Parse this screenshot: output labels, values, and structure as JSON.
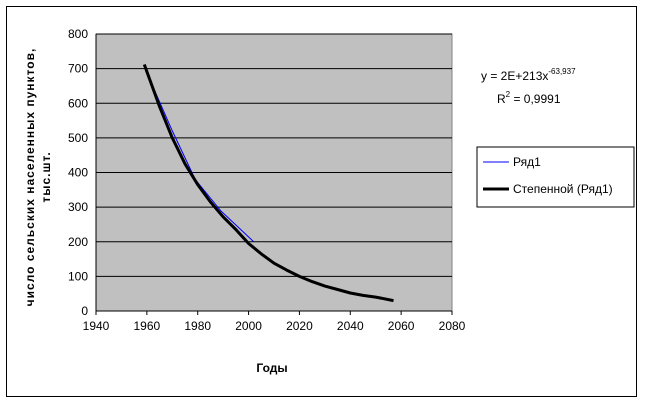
{
  "chart_data": {
    "type": "line",
    "xlabel": "Годы",
    "ylabel_line1": "число сельских населенных пунктов,",
    "ylabel_line2": "тыс.шт.",
    "xlim": [
      1940,
      2080
    ],
    "ylim": [
      0,
      800
    ],
    "xticks": [
      1940,
      1960,
      1980,
      2000,
      2020,
      2040,
      2060,
      2080
    ],
    "yticks": [
      0,
      100,
      200,
      300,
      400,
      500,
      600,
      700,
      800
    ],
    "grid": "horizontal",
    "plot_background": "#c0c0c0",
    "series": [
      {
        "name": "Ряд1",
        "color": "#0000ff",
        "style": "thin",
        "x": [
          1959,
          1970,
          1979,
          1989,
          2002
        ],
        "y": [
          705,
          520,
          380,
          290,
          200
        ]
      },
      {
        "name": "Степенной (Ряд1)",
        "color": "#000000",
        "style": "thick",
        "x": [
          1959,
          1965,
          1970,
          1975,
          1980,
          1985,
          1990,
          1995,
          2000,
          2005,
          2010,
          2015,
          2020,
          2025,
          2030,
          2035,
          2040,
          2045,
          2050,
          2057
        ],
        "y": [
          712,
          590,
          500,
          425,
          365,
          315,
          272,
          235,
          195,
          165,
          138,
          118,
          100,
          85,
          72,
          62,
          52,
          45,
          40,
          30
        ]
      }
    ],
    "trendline_equation": {
      "base": "y = 2E+213x",
      "exponent": "-63,937",
      "r2_prefix": "R",
      "r2_sup": "2",
      "r2_suffix": " = 0,9991"
    },
    "legend": {
      "placement": "right",
      "items": [
        "Ряд1",
        "Степенной (Ряд1)"
      ]
    }
  }
}
